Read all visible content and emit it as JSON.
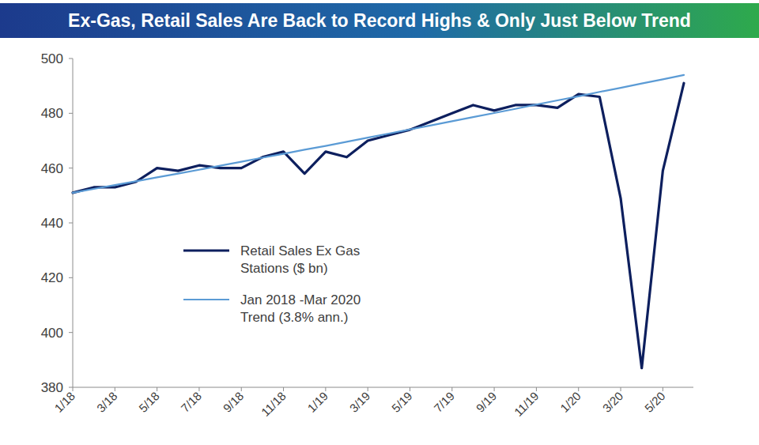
{
  "chart_data": {
    "type": "line",
    "title": "Ex-Gas, Retail Sales Are Back to Record Highs & Only Just Below Trend",
    "categories": [
      "1/18",
      null,
      "3/18",
      null,
      "5/18",
      null,
      "7/18",
      null,
      "9/18",
      null,
      "11/18",
      null,
      "1/19",
      null,
      "3/19",
      null,
      "5/19",
      null,
      "7/19",
      null,
      "9/19",
      null,
      "11/19",
      null,
      "1/20",
      null,
      "3/20",
      null,
      "5/20",
      null
    ],
    "series": [
      {
        "name": "Retail Sales Ex Gas Stations ($ bn)",
        "color": "#0d1f5e",
        "values": [
          451,
          453,
          453,
          455,
          460,
          459,
          461,
          460,
          460,
          464,
          466,
          458,
          466,
          464,
          470,
          472,
          474,
          477,
          480,
          483,
          481,
          483,
          483,
          482,
          487,
          486,
          449,
          387,
          459,
          491
        ]
      },
      {
        "name": "Jan 2018 -Mar 2020 Trend (3.8% ann.)",
        "color": "#5b9bd5",
        "values": [
          451,
          452.4,
          453.8,
          455.2,
          456.6,
          458.0,
          459.4,
          460.9,
          462.3,
          463.8,
          465.2,
          466.7,
          468.1,
          469.6,
          471.1,
          472.6,
          474.1,
          475.6,
          477.1,
          478.6,
          480.1,
          481.6,
          483.2,
          484.7,
          486.2,
          487.8,
          489.3,
          490.9,
          492.4,
          494.0
        ]
      }
    ],
    "ylim": [
      380,
      500
    ],
    "yticks": [
      380,
      400,
      420,
      440,
      460,
      480,
      500
    ],
    "grid": false,
    "legend": "left"
  }
}
